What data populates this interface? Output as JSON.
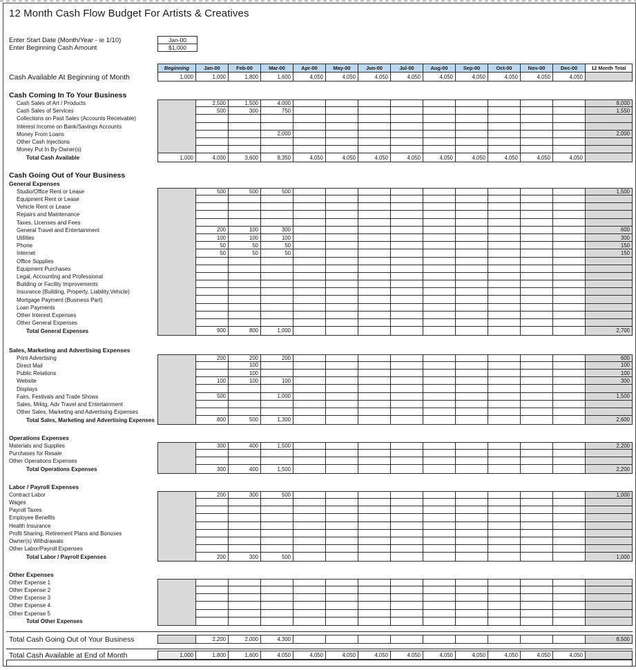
{
  "title": "12 Month Cash Flow Budget For Artists & Creatives",
  "inputs": {
    "start_date_label": "Enter Start Date (Month/Year - ie 1/10)",
    "start_date_value": "Jan-00",
    "beginning_cash_label": "Enter Beginning Cash Amount",
    "beginning_cash_value": "$1,000"
  },
  "colors": {
    "header_bg": "#bdd7ee",
    "cell_gray": "#d9d9d9",
    "cell_light_gray": "#ececec",
    "grid_border": "#2e2e2e"
  },
  "sheet": {
    "columns": [
      "Beginning",
      "Jan-00",
      "Feb-00",
      "Mar-00",
      "Apr-00",
      "May-00",
      "Jun-00",
      "Jul-00",
      "Aug-00",
      "Sep-00",
      "Oct-00",
      "Nov-00",
      "Dec-00",
      "12 Month Total"
    ],
    "sections": [
      {
        "id": "top",
        "kind": "top-table",
        "row": {
          "label": "Cash Available At Beginning of Month",
          "beginning": "1,000",
          "months": [
            "1,000",
            "1,800",
            "1,600",
            "4,050",
            "4,050",
            "4,050",
            "4,050",
            "4,050",
            "4,050",
            "4,050",
            "4,050",
            "4,050"
          ],
          "total": ""
        }
      },
      {
        "id": "cash-in",
        "kind": "section",
        "header": "Cash Coming In To Your Business",
        "header_style": "big",
        "gray_includes_total": false,
        "indent": 1,
        "details": [
          {
            "label": "Cash Sales of Art / Products",
            "months": [
              "2,500",
              "1,500",
              "4,000"
            ],
            "total": "8,000"
          },
          {
            "label": "Cash Sales of Services",
            "months": [
              "500",
              "300",
              "750"
            ],
            "total": "1,550"
          },
          {
            "label": "Collections on Past Sales (Accounts Receivable)",
            "months": [],
            "total": ""
          },
          {
            "label": "Interest Income on Bank/Savings Accounts",
            "months": [],
            "total": ""
          },
          {
            "label": "Money From Loans",
            "months": [
              "",
              "",
              "2,000"
            ],
            "total": "2,000"
          },
          {
            "label": "Other Cash Injections",
            "months": [],
            "total": ""
          },
          {
            "label": "Money Put In By Owner(s)",
            "months": [],
            "total": ""
          }
        ],
        "total_row": {
          "label": "Total Cash Available",
          "beginning_value": "1,000",
          "months": [
            "4,000",
            "3,600",
            "8,350",
            "4,050",
            "4,050",
            "4,050",
            "4,050",
            "4,050",
            "4,050",
            "4,050",
            "4,050",
            "4,050"
          ],
          "total": ""
        }
      },
      {
        "id": "cash-out-label",
        "kind": "label",
        "text": "Cash Going Out of Your Business"
      },
      {
        "id": "general",
        "kind": "section",
        "header": "General Expenses",
        "header_style": "small",
        "gray_includes_total": true,
        "indent": 1,
        "details": [
          {
            "label": "Studio/Office Rent or Lease",
            "months": [
              "500",
              "500",
              "500"
            ],
            "total": "1,500"
          },
          {
            "label": "Equipment Rent or Lease",
            "months": [],
            "total": ""
          },
          {
            "label": "Vehicle Rent or Lease",
            "months": [],
            "total": ""
          },
          {
            "label": "Repairs and Maintenance",
            "months": [],
            "total": ""
          },
          {
            "label": "Taxes, Licenses and Fees",
            "months": [],
            "total": ""
          },
          {
            "label": "General Travel and Entertainment",
            "months": [
              "200",
              "100",
              "300"
            ],
            "total": "600"
          },
          {
            "label": "Utilities",
            "months": [
              "100",
              "100",
              "100"
            ],
            "total": "300"
          },
          {
            "label": "Phone",
            "months": [
              "50",
              "50",
              "50"
            ],
            "total": "150"
          },
          {
            "label": "Internet",
            "months": [
              "50",
              "50",
              "50"
            ],
            "total": "150"
          },
          {
            "label": "Office Supplies",
            "months": [],
            "total": ""
          },
          {
            "label": "Equipment Purchases",
            "months": [],
            "total": ""
          },
          {
            "label": "Legal, Accounting and Professional",
            "months": [],
            "total": ""
          },
          {
            "label": "Building or Facility Improvements",
            "months": [],
            "total": ""
          },
          {
            "label": "Insurance (Building, Property, Liability,Vehicle)",
            "months": [],
            "total": ""
          },
          {
            "label": "Mortgage Payment (Business Part)",
            "months": [],
            "total": ""
          },
          {
            "label": "Loan Payments",
            "months": [],
            "total": ""
          },
          {
            "label": "Other Interest Expenses",
            "months": [],
            "total": ""
          },
          {
            "label": "Other General Expenses",
            "months": [],
            "total": ""
          }
        ],
        "total_row": {
          "label": "Total General Expenses",
          "months": [
            "900",
            "800",
            "1,000"
          ],
          "total": "2,700"
        }
      },
      {
        "id": "sales",
        "kind": "section",
        "header": "Sales, Marketing and Advertising Expenses",
        "header_style": "small",
        "gray_includes_total": true,
        "indent": 1,
        "details": [
          {
            "label": "Print Advertising",
            "months": [
              "200",
              "200",
              "200"
            ],
            "total": "600"
          },
          {
            "label": "Direct Mail",
            "months": [
              "",
              "100"
            ],
            "total": "100"
          },
          {
            "label": "Public Relations",
            "months": [
              "",
              "100"
            ],
            "total": "100"
          },
          {
            "label": "Website",
            "months": [
              "100",
              "100",
              "100"
            ],
            "total": "300"
          },
          {
            "label": "Displays",
            "months": [],
            "total": ""
          },
          {
            "label": "Fairs, Festivals and Trade Shows",
            "months": [
              "500",
              "",
              "1,000"
            ],
            "total": "1,500"
          },
          {
            "label": "Sales, Mrktg, Adv Travel and Entertainment",
            "months": [],
            "total": ""
          },
          {
            "label": "Other Sales, Marketing and Advertising Expenses",
            "months": [],
            "total": ""
          }
        ],
        "total_row": {
          "label": "Total Sales, Marketing and Advertising Expenses",
          "months": [
            "800",
            "500",
            "1,300"
          ],
          "total": "2,600"
        }
      },
      {
        "id": "operations",
        "kind": "section",
        "header": "Operations Expenses",
        "header_style": "small",
        "gray_includes_total": true,
        "indent": 0,
        "details": [
          {
            "label": "Materials and Supplies",
            "months": [
              "300",
              "400",
              "1,500"
            ],
            "total": "2,200"
          },
          {
            "label": "Purchases for Resale",
            "months": [],
            "total": ""
          },
          {
            "label": "Other Operations Expenses",
            "months": [],
            "total": ""
          }
        ],
        "total_row": {
          "label": "Total Operations Expenses",
          "months": [
            "300",
            "400",
            "1,500"
          ],
          "total": "2,200"
        }
      },
      {
        "id": "labor",
        "kind": "section",
        "header": "Labor / Payroll Expenses",
        "header_style": "small",
        "gray_includes_total": true,
        "indent": 0,
        "details": [
          {
            "label": "Contract Labor",
            "months": [
              "200",
              "300",
              "500"
            ],
            "total": "1,000"
          },
          {
            "label": "Wages",
            "months": [],
            "total": ""
          },
          {
            "label": "Payroll Taxes",
            "months": [],
            "total": ""
          },
          {
            "label": "Employee Benefits",
            "months": [],
            "total": ""
          },
          {
            "label": "Health Insurance",
            "months": [],
            "total": ""
          },
          {
            "label": "Profit Sharing, Retirement Plans and Bonuses",
            "months": [],
            "total": ""
          },
          {
            "label": "Owner(s) Withdrawals",
            "months": [],
            "total": ""
          },
          {
            "label": "Other Labor/Payroll Expenses",
            "months": [],
            "total": ""
          }
        ],
        "total_row": {
          "label": "Total Labor / Payroll Expenses",
          "months": [
            "200",
            "300",
            "500"
          ],
          "total": "1,000"
        }
      },
      {
        "id": "other",
        "kind": "section",
        "header": "Other Expenses",
        "header_style": "small",
        "gray_includes_total": true,
        "indent": 0,
        "details": [
          {
            "label": "Other Expense 1",
            "months": [],
            "total": ""
          },
          {
            "label": "Other Expense 2",
            "months": [],
            "total": ""
          },
          {
            "label": "Other Expense 3",
            "months": [],
            "total": ""
          },
          {
            "label": "Other Expense 4",
            "months": [],
            "total": ""
          },
          {
            "label": "Other Expense 5",
            "months": [],
            "total": ""
          }
        ],
        "total_row": {
          "label": "Total Other Expenses",
          "months": [],
          "total": ""
        }
      },
      {
        "id": "going-out",
        "kind": "summary",
        "label": "Total Cash Going Out of Your Business",
        "beginning_style": "gray",
        "beginning_value": "",
        "months": [
          "2,200",
          "2,000",
          "4,300"
        ],
        "total": "8,500"
      },
      {
        "id": "end-month",
        "kind": "summary",
        "label": "Total Cash Available at End of Month",
        "beginning_style": "light",
        "beginning_value": "1,000",
        "months": [
          "1,800",
          "1,600",
          "4,050",
          "4,050",
          "4,050",
          "4,050",
          "4,050",
          "4,050",
          "4,050",
          "4,050",
          "4,050",
          "4,050"
        ],
        "total": ""
      },
      {
        "id": "footer-strip",
        "kind": "strip"
      }
    ]
  }
}
